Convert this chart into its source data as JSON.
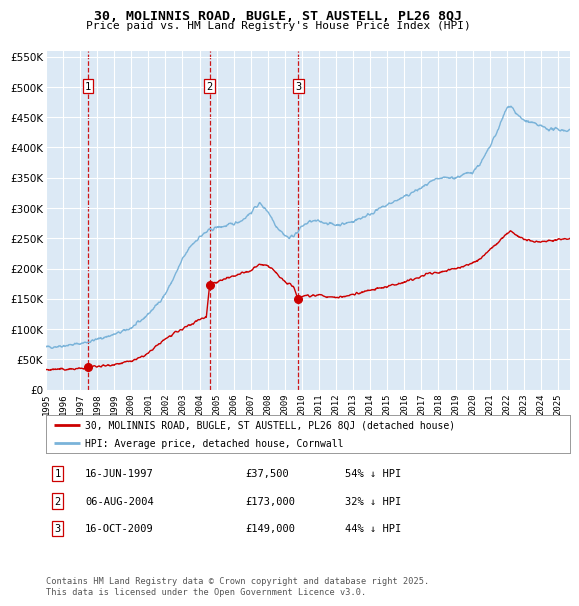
{
  "title1": "30, MOLINNIS ROAD, BUGLE, ST AUSTELL, PL26 8QJ",
  "title2": "Price paid vs. HM Land Registry's House Price Index (HPI)",
  "bg_color": "#dce9f5",
  "grid_color": "#ffffff",
  "hpi_color": "#7ab3d9",
  "price_color": "#cc0000",
  "marker_color": "#cc0000",
  "sale1_date": 1997.46,
  "sale1_price": 37500,
  "sale1_date_str": "16-JUN-1997",
  "sale1_pct": "54% ↓ HPI",
  "sale2_date": 2004.59,
  "sale2_price": 173000,
  "sale2_date_str": "06-AUG-2004",
  "sale2_pct": "32% ↓ HPI",
  "sale3_date": 2009.79,
  "sale3_price": 149000,
  "sale3_date_str": "16-OCT-2009",
  "sale3_pct": "44% ↓ HPI",
  "ylim": [
    0,
    560000
  ],
  "yticks": [
    0,
    50000,
    100000,
    150000,
    200000,
    250000,
    300000,
    350000,
    400000,
    450000,
    500000,
    550000
  ],
  "xlim_min": 1995.0,
  "xlim_max": 2025.7,
  "legend_line1": "30, MOLINNIS ROAD, BUGLE, ST AUSTELL, PL26 8QJ (detached house)",
  "legend_line2": "HPI: Average price, detached house, Cornwall",
  "footer": "Contains HM Land Registry data © Crown copyright and database right 2025.\nThis data is licensed under the Open Government Licence v3.0."
}
